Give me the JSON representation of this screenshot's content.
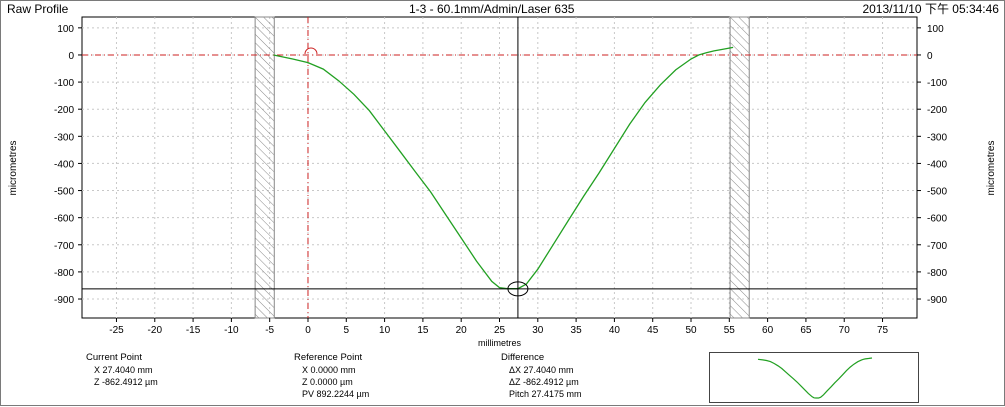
{
  "header": {
    "title": "Raw Profile",
    "subtitle": "1-3 - 60.1mm/Admin/Laser 635",
    "timestamp": "2013/11/10 下午 05:34:46"
  },
  "chart_data": {
    "type": "line",
    "xlabel": "millimetres",
    "ylabel": "micrometres",
    "xlim": [
      -29.5,
      79.5
    ],
    "ylim": [
      -970,
      140
    ],
    "x_ticks": [
      -25,
      -20,
      -15,
      -10,
      -5,
      0,
      5,
      10,
      15,
      20,
      25,
      30,
      35,
      40,
      45,
      50,
      55,
      60,
      65,
      70,
      75
    ],
    "y_ticks": [
      100,
      0,
      -100,
      -200,
      -300,
      -400,
      -500,
      -600,
      -700,
      -800,
      -900
    ],
    "grid": true,
    "series": [
      {
        "color": "#22a022",
        "x": [
          -4.5,
          -2,
          0,
          2,
          4,
          6,
          8,
          10,
          12,
          14,
          16,
          18,
          20,
          22,
          24,
          25,
          26,
          27.4,
          28.5,
          30,
          32,
          34,
          36,
          38,
          40,
          42,
          44,
          46,
          48,
          50,
          51,
          52,
          53,
          54,
          55.5
        ],
        "y": [
          0,
          -15,
          -28,
          -52,
          -95,
          -145,
          -205,
          -280,
          -355,
          -430,
          -505,
          -590,
          -675,
          -760,
          -835,
          -858,
          -862,
          -862,
          -845,
          -790,
          -700,
          -610,
          -520,
          -435,
          -345,
          -255,
          -175,
          -110,
          -55,
          -15,
          0,
          8,
          15,
          20,
          28
        ]
      }
    ],
    "cursor": {
      "x": 27.404,
      "z": -862.4912
    },
    "reference": {
      "x": 0,
      "z": 0
    },
    "exclusion_zones": [
      [
        -6.9,
        -4.4
      ],
      [
        55.1,
        57.6
      ]
    ],
    "axis_color": "#000000",
    "reference_color": "#cc2222",
    "hatch_color": "#888888"
  },
  "readouts": {
    "current": {
      "title": "Current Point",
      "x": "X  27.4040 mm",
      "z": "Z  -862.4912 µm"
    },
    "reference": {
      "title": "Reference Point",
      "x": "X  0.0000 mm",
      "z": "Z  0.0000 µm",
      "pv": "PV 892.2244 µm"
    },
    "difference": {
      "title": "Difference",
      "dx": "ΔX  27.4040 mm",
      "dz": "ΔZ  -862.4912 µm",
      "pitch": "Pitch 27.4175 mm"
    }
  }
}
